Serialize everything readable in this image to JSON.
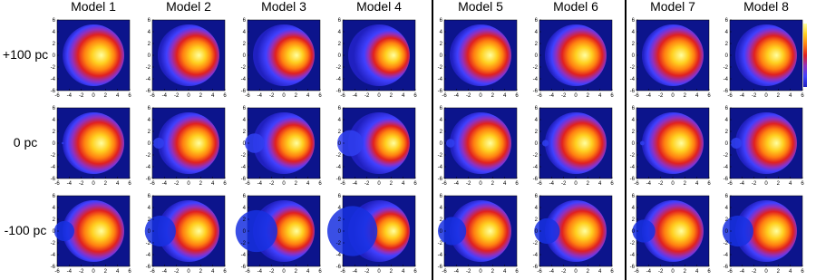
{
  "columns": [
    "Model 1",
    "Model 2",
    "Model 3",
    "Model 4",
    "Model 5",
    "Model 6",
    "Model 7",
    "Model 8"
  ],
  "rows": [
    "+100 pc",
    "0 pc",
    "-100 pc"
  ],
  "axis_ticks": [
    -6,
    -4,
    -2,
    0,
    2,
    4,
    6
  ]
}
